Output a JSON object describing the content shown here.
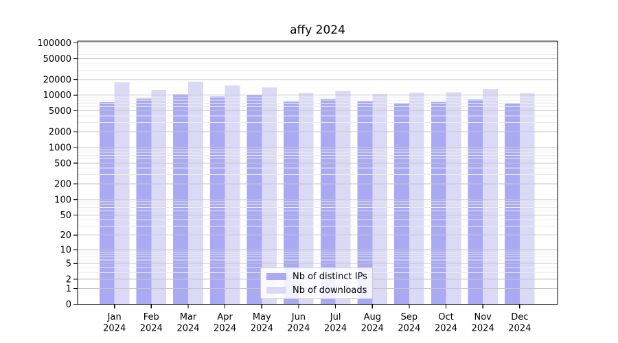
{
  "figure": {
    "title": "affy 2024"
  },
  "chart_data": {
    "type": "bar",
    "title": "affy 2024",
    "categories": [
      "Jan",
      "Feb",
      "Mar",
      "Apr",
      "May",
      "Jun",
      "Jul",
      "Aug",
      "Sep",
      "Oct",
      "Nov",
      "Dec"
    ],
    "x_sub_label": "2024",
    "series": [
      {
        "name": "Nb of distinct IPs",
        "color": "#a9a9f4",
        "values": [
          7300,
          8700,
          10300,
          9500,
          9900,
          7500,
          8500,
          7700,
          7000,
          7400,
          8400,
          7100
        ]
      },
      {
        "name": "Nb of downloads",
        "color": "#dadaf7",
        "values": [
          17600,
          12700,
          18100,
          15400,
          14100,
          11000,
          12100,
          10500,
          11200,
          11400,
          13000,
          10800
        ]
      }
    ],
    "y_scale": "log10(value+1)",
    "y_ticks": [
      0,
      1,
      2,
      5,
      10,
      20,
      50,
      100,
      200,
      500,
      1000,
      2000,
      5000,
      10000,
      20000,
      50000,
      100000
    ],
    "minor_tick_multipliers": [
      3,
      4,
      6,
      7,
      8,
      9
    ],
    "ylim": [
      0,
      100000
    ],
    "grid": true,
    "legend_position": "bottom-center",
    "colors": {
      "major_grid": "#c6c6c6",
      "minor_grid": "#ececec",
      "axis": "#000000",
      "background": "#ffffff"
    }
  }
}
